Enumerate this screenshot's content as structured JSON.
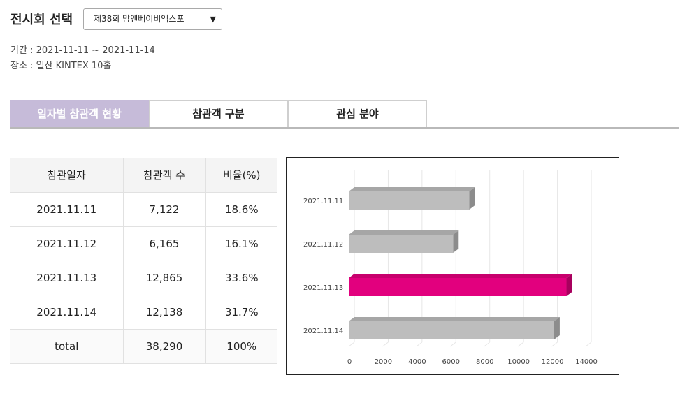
{
  "selector": {
    "label": "전시회 선택",
    "value": "제38회 맘앤베이비엑스포"
  },
  "info": {
    "period": "기간 : 2021-11-11 ~ 2021-11-14",
    "place": "장소 : 일산 KINTEX 10홀"
  },
  "tabs": [
    {
      "label": "일자별 참관객 현황",
      "active": true
    },
    {
      "label": "참관객 구분",
      "active": false
    },
    {
      "label": "관심 분야",
      "active": false
    }
  ],
  "table": {
    "headers": [
      "참관일자",
      "참관객 수",
      "비율(%)"
    ],
    "rows": [
      [
        "2021.11.11",
        "7,122",
        "18.6%"
      ],
      [
        "2021.11.12",
        "6,165",
        "16.1%"
      ],
      [
        "2021.11.13",
        "12,865",
        "33.6%"
      ],
      [
        "2021.11.14",
        "12,138",
        "31.7%"
      ]
    ],
    "total": [
      "total",
      "38,290",
      "100%"
    ]
  },
  "chart_data": {
    "type": "bar",
    "orientation": "horizontal",
    "categories": [
      "2021.11.11",
      "2021.11.12",
      "2021.11.13",
      "2021.11.14"
    ],
    "values": [
      7122,
      6165,
      12865,
      12138
    ],
    "highlight_index": 2,
    "colors": {
      "default": "#bdbdbd",
      "default_side": "#8c8c8c",
      "highlight": "#e2007e",
      "highlight_side": "#a8005e"
    },
    "xlim": [
      0,
      14000
    ],
    "xticks": [
      0,
      2000,
      4000,
      6000,
      8000,
      10000,
      12000,
      14000
    ],
    "grid": true,
    "title": "",
    "xlabel": "",
    "ylabel": ""
  }
}
